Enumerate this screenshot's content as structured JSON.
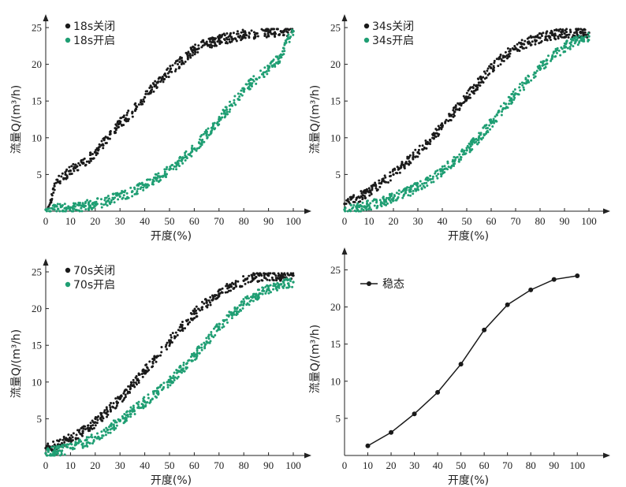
{
  "chart_data": [
    {
      "type": "scatter",
      "xlabel": "开度(%)",
      "ylabel": "流量Q/(m³/h)",
      "xlim": [
        0,
        100
      ],
      "ylim": [
        0,
        25
      ],
      "xticks": [
        0,
        10,
        20,
        30,
        40,
        50,
        60,
        70,
        80,
        90,
        100
      ],
      "yticks": [
        5,
        10,
        15,
        20,
        25
      ],
      "legend_position": "top-left",
      "series": [
        {
          "name": "18s关闭",
          "color": "#1a1a1a",
          "x": [
            1,
            2,
            3,
            5,
            8,
            10,
            15,
            20,
            25,
            30,
            35,
            40,
            45,
            50,
            55,
            60,
            65,
            70,
            75,
            80,
            85,
            90,
            95,
            100
          ],
          "y": [
            0.5,
            1.5,
            3,
            4,
            5,
            5.5,
            6.5,
            8,
            10,
            12,
            13.5,
            15.5,
            17.5,
            19,
            20.5,
            22,
            22.8,
            23.3,
            23.7,
            24,
            24.2,
            24.4,
            24.5,
            24.5
          ]
        },
        {
          "name": "18s开启",
          "color": "#1f9e73",
          "x": [
            0,
            5,
            10,
            15,
            20,
            25,
            30,
            35,
            40,
            45,
            50,
            55,
            60,
            65,
            70,
            75,
            80,
            85,
            90,
            95,
            98,
            100
          ],
          "y": [
            0.2,
            0.3,
            0.5,
            0.7,
            1.0,
            1.4,
            2.0,
            2.7,
            3.5,
            4.5,
            5.7,
            7.0,
            8.5,
            10.5,
            12.5,
            14.5,
            16.5,
            18.0,
            19.5,
            21.0,
            23.5,
            24.5
          ]
        }
      ]
    },
    {
      "type": "scatter",
      "xlabel": "开度(%)",
      "ylabel": "流量Q/(m³/h)",
      "xlim": [
        0,
        100
      ],
      "ylim": [
        0,
        25
      ],
      "xticks": [
        0,
        10,
        20,
        30,
        40,
        50,
        60,
        70,
        80,
        90,
        100
      ],
      "yticks": [
        5,
        10,
        15,
        20,
        25
      ],
      "legend_position": "top-left",
      "series": [
        {
          "name": "34s关闭",
          "color": "#1a1a1a",
          "x": [
            0,
            5,
            10,
            15,
            20,
            25,
            30,
            35,
            40,
            45,
            50,
            55,
            60,
            65,
            70,
            75,
            80,
            85,
            90,
            95,
            100
          ],
          "y": [
            1.0,
            1.8,
            2.6,
            3.8,
            5.0,
            6.5,
            8.0,
            9.7,
            11.5,
            13.5,
            15.5,
            17.5,
            19.5,
            21.0,
            22.2,
            23.0,
            23.6,
            24.0,
            24.2,
            24.3,
            24.3
          ]
        },
        {
          "name": "34s开启",
          "color": "#1f9e73",
          "x": [
            0,
            5,
            10,
            15,
            20,
            25,
            30,
            35,
            40,
            45,
            50,
            55,
            60,
            65,
            70,
            75,
            80,
            85,
            90,
            95,
            100
          ],
          "y": [
            0.2,
            0.4,
            0.8,
            1.2,
            1.8,
            2.5,
            3.3,
            4.3,
            5.5,
            6.8,
            8.3,
            10.0,
            12.0,
            14.0,
            16.0,
            17.8,
            19.5,
            21.0,
            22.3,
            23.3,
            23.8
          ]
        }
      ]
    },
    {
      "type": "scatter",
      "xlabel": "开度(%)",
      "ylabel": "流量Q/(m³/h)",
      "xlim": [
        0,
        100
      ],
      "ylim": [
        0,
        25
      ],
      "xticks": [
        0,
        10,
        20,
        30,
        40,
        50,
        60,
        70,
        80,
        90,
        100
      ],
      "yticks": [
        5,
        10,
        15,
        20,
        25
      ],
      "legend_position": "top-left",
      "series": [
        {
          "name": "70s关闭",
          "color": "#1a1a1a",
          "x": [
            0,
            5,
            10,
            15,
            20,
            25,
            30,
            35,
            40,
            45,
            50,
            55,
            60,
            65,
            70,
            75,
            80,
            85,
            90,
            95,
            100
          ],
          "y": [
            1.0,
            1.5,
            2.3,
            3.3,
            4.5,
            6.0,
            7.7,
            9.5,
            11.5,
            13.5,
            15.5,
            17.5,
            19.3,
            20.8,
            22.0,
            23.0,
            23.8,
            24.3,
            24.5,
            24.5,
            24.5
          ]
        },
        {
          "name": "70s开启",
          "color": "#1f9e73",
          "x": [
            0,
            5,
            10,
            15,
            20,
            25,
            30,
            35,
            40,
            45,
            50,
            55,
            60,
            65,
            70,
            75,
            80,
            85,
            90,
            95,
            100
          ],
          "y": [
            0.3,
            0.6,
            1.0,
            1.6,
            2.5,
            3.5,
            4.7,
            6.0,
            7.3,
            8.5,
            10.0,
            11.7,
            13.5,
            15.5,
            17.5,
            19.2,
            20.7,
            21.8,
            22.7,
            23.3,
            23.6
          ]
        }
      ]
    },
    {
      "type": "line",
      "xlabel": "开度(%)",
      "ylabel": "流量Q/(m³/h)",
      "xlim": [
        0,
        105
      ],
      "ylim": [
        0,
        26
      ],
      "xticks": [
        0,
        10,
        20,
        30,
        40,
        50,
        60,
        70,
        80,
        90,
        100
      ],
      "yticks": [
        5,
        10,
        15,
        20,
        25
      ],
      "legend_position": "top-left",
      "series": [
        {
          "name": "稳态",
          "color": "#1a1a1a",
          "x": [
            10,
            20,
            30,
            40,
            50,
            60,
            70,
            80,
            90,
            100
          ],
          "y": [
            1.3,
            3.1,
            5.6,
            8.5,
            12.3,
            16.9,
            20.3,
            22.3,
            23.7,
            24.2
          ]
        }
      ]
    }
  ]
}
